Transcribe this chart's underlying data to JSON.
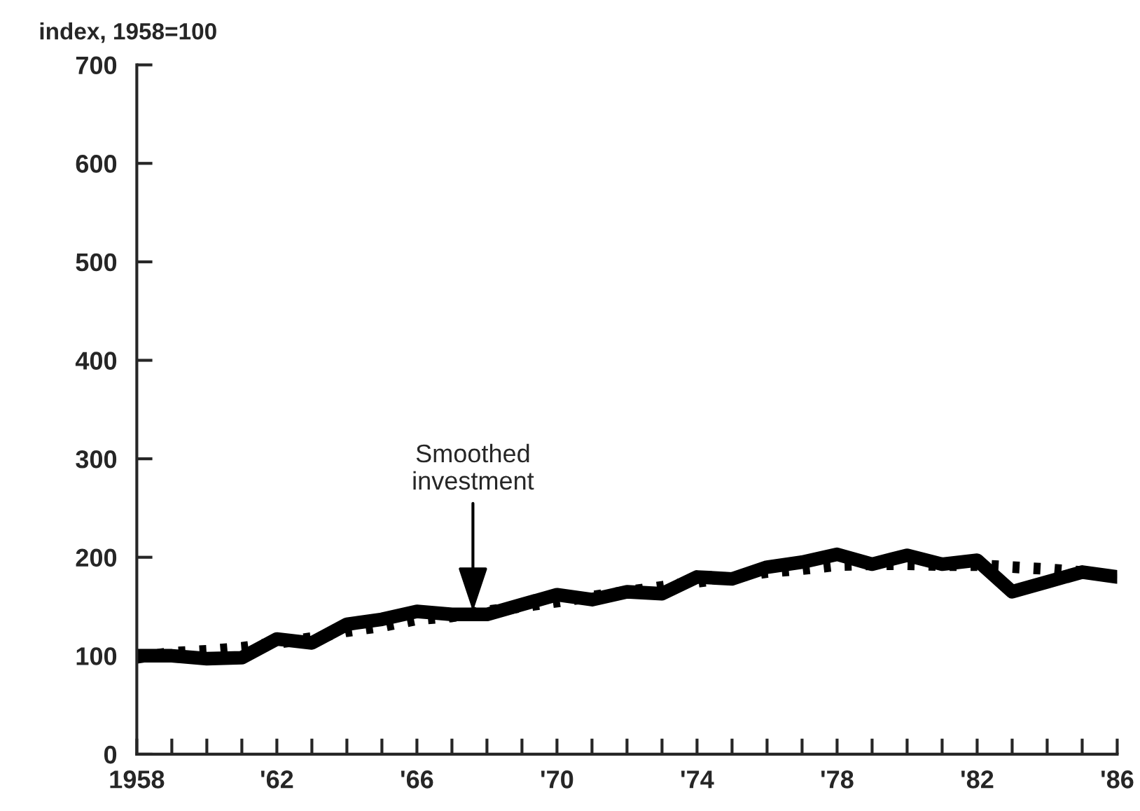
{
  "chart_data": {
    "type": "line",
    "ylabel": "index, 1958=100",
    "x": [
      1958,
      1959,
      1960,
      1961,
      1962,
      1963,
      1964,
      1965,
      1966,
      1967,
      1968,
      1969,
      1970,
      1971,
      1972,
      1973,
      1974,
      1975,
      1976,
      1977,
      1978,
      1979,
      1980,
      1981,
      1982,
      1983,
      1984,
      1985,
      1986
    ],
    "series": [
      {
        "color": "#000000",
        "line_style": "dotted",
        "values": [
          98,
          103,
          105,
          108,
          113,
          118,
          125,
          130,
          137,
          140,
          145,
          150,
          155,
          160,
          165,
          170,
          175,
          180,
          185,
          188,
          192,
          193,
          193,
          192,
          192,
          190,
          188,
          185,
          180
        ]
      },
      {
        "color": "#000000",
        "line_style": "solid",
        "values": [
          100,
          100,
          97,
          98,
          117,
          113,
          132,
          137,
          145,
          142,
          142,
          152,
          162,
          157,
          165,
          163,
          180,
          178,
          190,
          195,
          203,
          193,
          202,
          193,
          197,
          165,
          175,
          185,
          180
        ]
      }
    ],
    "xlim": [
      1958,
      1986
    ],
    "xticks": [
      {
        "value": 1958,
        "label": "1958"
      },
      {
        "value": 1959,
        "label": null
      },
      {
        "value": 1960,
        "label": null
      },
      {
        "value": 1961,
        "label": null
      },
      {
        "value": 1962,
        "label": "'62"
      },
      {
        "value": 1963,
        "label": null
      },
      {
        "value": 1964,
        "label": null
      },
      {
        "value": 1965,
        "label": null
      },
      {
        "value": 1966,
        "label": "'66"
      },
      {
        "value": 1967,
        "label": null
      },
      {
        "value": 1968,
        "label": null
      },
      {
        "value": 1969,
        "label": null
      },
      {
        "value": 1970,
        "label": "'70"
      },
      {
        "value": 1971,
        "label": null
      },
      {
        "value": 1972,
        "label": null
      },
      {
        "value": 1973,
        "label": null
      },
      {
        "value": 1974,
        "label": "'74"
      },
      {
        "value": 1975,
        "label": null
      },
      {
        "value": 1976,
        "label": null
      },
      {
        "value": 1977,
        "label": null
      },
      {
        "value": 1978,
        "label": "'78"
      },
      {
        "value": 1979,
        "label": null
      },
      {
        "value": 1980,
        "label": null
      },
      {
        "value": 1981,
        "label": null
      },
      {
        "value": 1982,
        "label": "'82"
      },
      {
        "value": 1983,
        "label": null
      },
      {
        "value": 1984,
        "label": null
      },
      {
        "value": 1985,
        "label": null
      },
      {
        "value": 1986,
        "label": "'86"
      }
    ],
    "ylim": [
      0,
      700
    ],
    "yticks": [
      0,
      100,
      200,
      300,
      400,
      500,
      600,
      700
    ],
    "grid": false,
    "marker": "none",
    "annotations": [
      {
        "text": "Smoothed\ninvestment",
        "x": 1967.6,
        "y": 145
      }
    ]
  }
}
